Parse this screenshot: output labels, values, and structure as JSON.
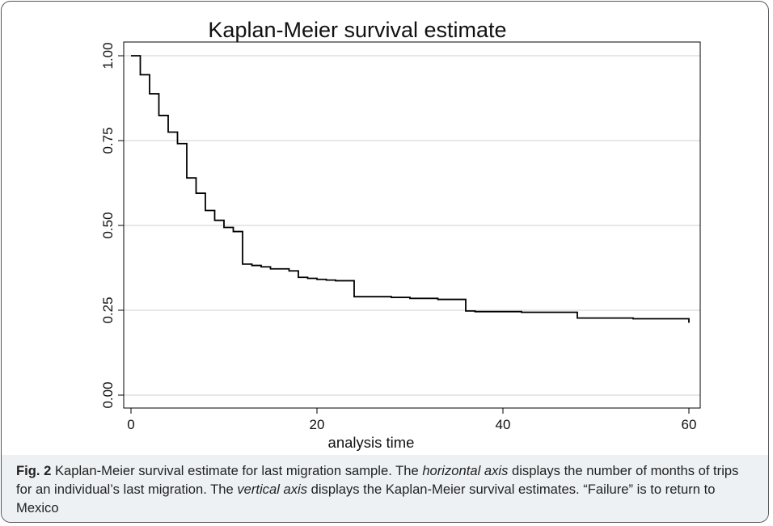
{
  "chart_data": {
    "type": "line",
    "step": true,
    "title": "Kaplan-Meier survival estimate",
    "xlabel": "analysis time",
    "ylabel": "",
    "xlim": [
      0,
      60
    ],
    "ylim": [
      0,
      1
    ],
    "xticks": [
      "0",
      "20",
      "40",
      "60"
    ],
    "xtick_values": [
      0,
      20,
      40,
      60
    ],
    "yticks": [
      "0.00",
      "0.25",
      "0.50",
      "0.75",
      "1.00"
    ],
    "ytick_values": [
      0,
      0.25,
      0.5,
      0.75,
      1.0
    ],
    "grid": "horizontal",
    "line_color": "#000000",
    "grid_color": "#d4d9de",
    "series": [
      {
        "x": [
          0,
          1,
          2,
          3,
          4,
          5,
          6,
          7,
          8,
          9,
          10,
          11,
          12,
          13,
          14,
          15,
          17,
          18,
          19,
          20,
          21,
          22,
          24,
          28,
          30,
          33,
          36,
          37,
          42,
          48,
          54,
          60
        ],
        "y": [
          1.0,
          0.944,
          0.888,
          0.824,
          0.775,
          0.741,
          0.64,
          0.595,
          0.544,
          0.515,
          0.494,
          0.482,
          0.386,
          0.382,
          0.378,
          0.372,
          0.366,
          0.347,
          0.344,
          0.341,
          0.339,
          0.337,
          0.29,
          0.288,
          0.285,
          0.282,
          0.248,
          0.246,
          0.244,
          0.227,
          0.225,
          0.213
        ]
      }
    ]
  },
  "caption": {
    "label": "Fig. 2",
    "part1": " Kaplan-Meier survival estimate for last migration sample. The ",
    "em1": "horizontal axis",
    "part2": " displays the number of months of trips for an individual’s last migration. The ",
    "em2": "vertical axis",
    "part3": " displays the Kaplan-Meier survival estimates. “Failure” is to return to Mexico"
  }
}
